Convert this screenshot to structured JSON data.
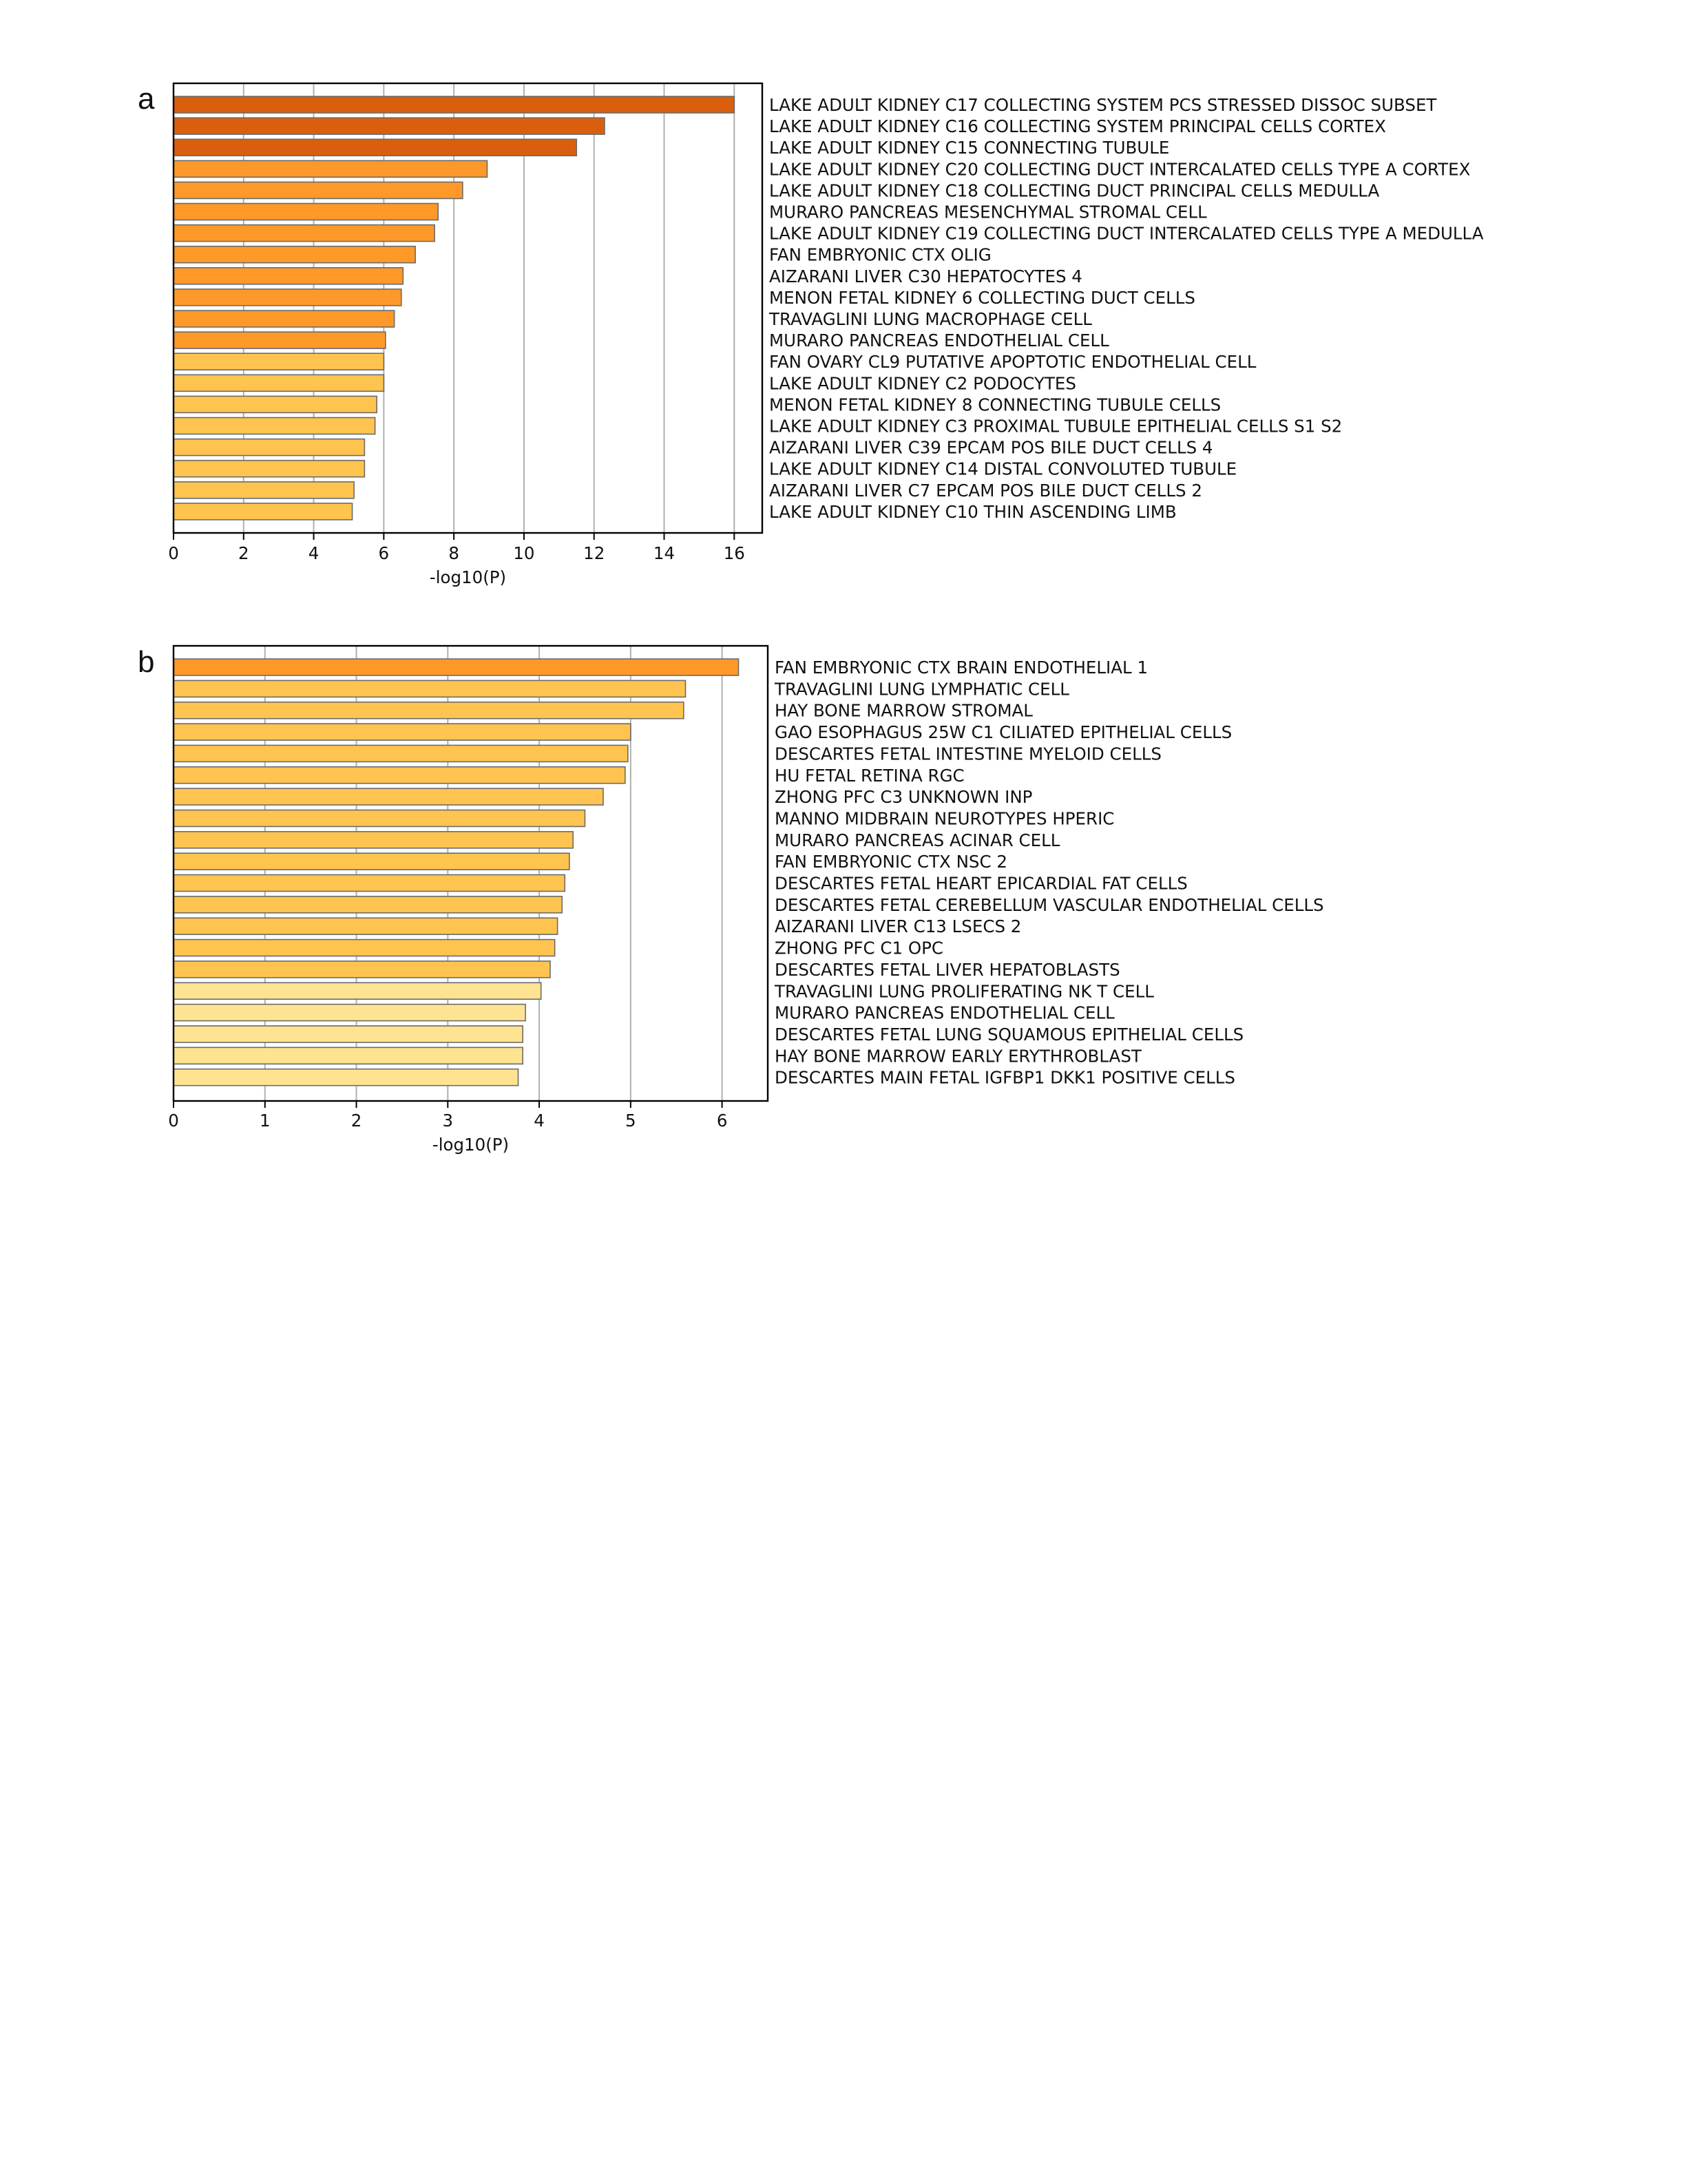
{
  "chart_data": [
    {
      "type": "bar",
      "orientation": "horizontal",
      "panel_label": "a",
      "xlabel": "-log10(P)",
      "xlim": [
        0,
        16.8
      ],
      "xticks": [
        0,
        2,
        4,
        6,
        8,
        10,
        12,
        14,
        16
      ],
      "grid": "vertical",
      "categories": [
        "LAKE ADULT KIDNEY C17 COLLECTING SYSTEM PCS STRESSED DISSOC SUBSET",
        "LAKE ADULT KIDNEY C16 COLLECTING SYSTEM PRINCIPAL CELLS CORTEX",
        "LAKE ADULT KIDNEY C15 CONNECTING TUBULE",
        "LAKE ADULT KIDNEY C20 COLLECTING DUCT INTERCALATED CELLS TYPE A CORTEX",
        "LAKE ADULT KIDNEY C18 COLLECTING DUCT PRINCIPAL CELLS MEDULLA",
        "MURARO PANCREAS MESENCHYMAL STROMAL CELL",
        "LAKE ADULT KIDNEY C19 COLLECTING DUCT INTERCALATED CELLS TYPE A MEDULLA",
        "FAN EMBRYONIC CTX OLIG",
        "AIZARANI LIVER C30 HEPATOCYTES 4",
        "MENON FETAL KIDNEY 6 COLLECTING DUCT CELLS",
        "TRAVAGLINI LUNG MACROPHAGE CELL",
        "MURARO PANCREAS ENDOTHELIAL CELL",
        "FAN OVARY CL9 PUTATIVE APOPTOTIC ENDOTHELIAL CELL",
        "LAKE ADULT KIDNEY C2 PODOCYTES",
        "MENON FETAL KIDNEY 8 CONNECTING TUBULE CELLS",
        "LAKE ADULT KIDNEY C3 PROXIMAL TUBULE EPITHELIAL CELLS S1 S2",
        "AIZARANI LIVER C39 EPCAM POS BILE DUCT CELLS 4",
        "LAKE ADULT KIDNEY C14 DISTAL CONVOLUTED TUBULE",
        "AIZARANI LIVER C7 EPCAM POS BILE DUCT CELLS 2",
        "LAKE ADULT KIDNEY C10 THIN ASCENDING LIMB"
      ],
      "values": [
        16.0,
        12.3,
        11.5,
        8.95,
        8.25,
        7.55,
        7.45,
        6.9,
        6.55,
        6.5,
        6.3,
        6.05,
        6.0,
        6.0,
        5.8,
        5.75,
        5.45,
        5.45,
        5.15,
        5.1
      ],
      "colors": [
        "#d95f0e",
        "#d95f0e",
        "#d95f0e",
        "#fe9929",
        "#fe9929",
        "#fe9929",
        "#fe9929",
        "#fe9929",
        "#fe9929",
        "#fe9929",
        "#fe9929",
        "#fe9929",
        "#fec44f",
        "#fec44f",
        "#fec44f",
        "#fec44f",
        "#fec44f",
        "#fec44f",
        "#fec44f",
        "#fec44f"
      ]
    },
    {
      "type": "bar",
      "orientation": "horizontal",
      "panel_label": "b",
      "xlabel": "-log10(P)",
      "xlim": [
        0,
        6.5
      ],
      "xticks": [
        0,
        1,
        2,
        3,
        4,
        5,
        6
      ],
      "grid": "vertical",
      "categories": [
        "FAN EMBRYONIC CTX BRAIN ENDOTHELIAL 1",
        "TRAVAGLINI LUNG LYMPHATIC CELL",
        "HAY BONE MARROW STROMAL",
        "GAO ESOPHAGUS 25W C1 CILIATED EPITHELIAL CELLS",
        "DESCARTES FETAL INTESTINE MYELOID CELLS",
        "HU FETAL RETINA RGC",
        "ZHONG PFC C3 UNKNOWN INP",
        "MANNO MIDBRAIN NEUROTYPES HPERIC",
        "MURARO PANCREAS ACINAR CELL",
        "FAN EMBRYONIC CTX NSC 2",
        "DESCARTES FETAL HEART EPICARDIAL FAT CELLS",
        "DESCARTES FETAL CEREBELLUM VASCULAR ENDOTHELIAL CELLS",
        "AIZARANI LIVER C13 LSECS 2",
        "ZHONG PFC C1 OPC",
        "DESCARTES FETAL LIVER HEPATOBLASTS",
        "TRAVAGLINI LUNG PROLIFERATING NK T CELL",
        "MURARO PANCREAS ENDOTHELIAL CELL",
        "DESCARTES FETAL LUNG SQUAMOUS EPITHELIAL CELLS",
        "HAY BONE MARROW EARLY ERYTHROBLAST",
        "DESCARTES MAIN FETAL IGFBP1 DKK1 POSITIVE CELLS"
      ],
      "values": [
        6.18,
        5.6,
        5.58,
        5.0,
        4.97,
        4.94,
        4.7,
        4.5,
        4.37,
        4.33,
        4.28,
        4.25,
        4.2,
        4.17,
        4.12,
        4.02,
        3.85,
        3.82,
        3.82,
        3.77
      ],
      "colors": [
        "#fe9929",
        "#fec44f",
        "#fec44f",
        "#fec44f",
        "#fec44f",
        "#fec44f",
        "#fec44f",
        "#fec44f",
        "#fec44f",
        "#fec44f",
        "#fec44f",
        "#fec44f",
        "#fec44f",
        "#fec44f",
        "#fec44f",
        "#fee391",
        "#fee391",
        "#fee391",
        "#fee391",
        "#fee391"
      ]
    }
  ]
}
